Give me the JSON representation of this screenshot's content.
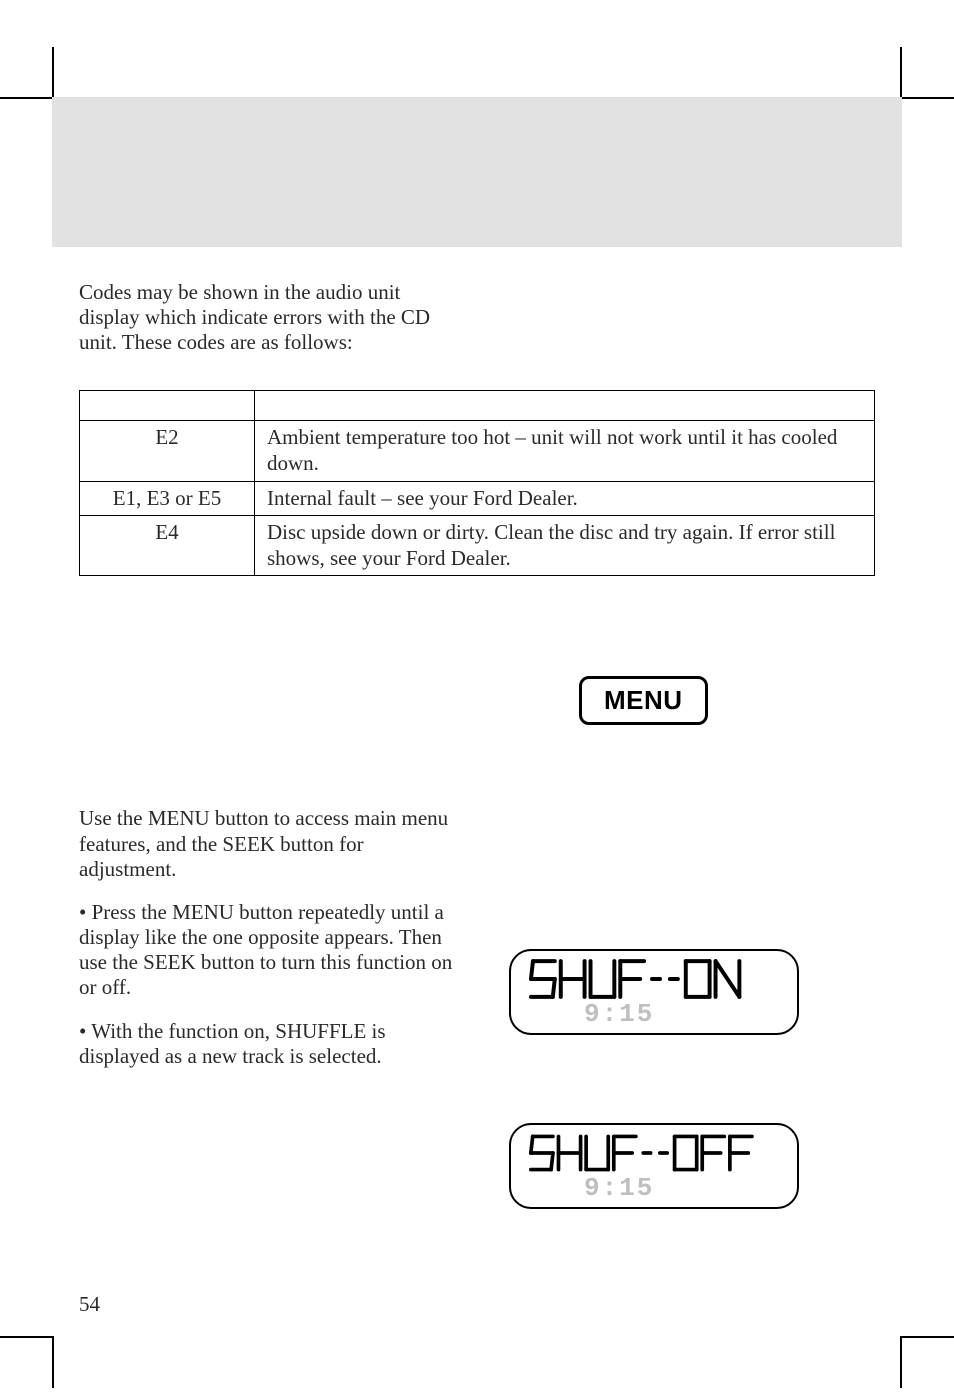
{
  "intro": "Codes may be shown in the audio unit display which indicate errors with the CD unit. These codes are as follows:",
  "table": {
    "rows": [
      {
        "code": "E2",
        "desc": "Ambient temperature too hot – unit will not work until it has cooled down."
      },
      {
        "code": "E1, E3 or E5",
        "desc": "Internal fault – see your Ford Dealer."
      },
      {
        "code": "E4",
        "desc": "Disc upside down or dirty. Clean the disc and try again. If error still shows, see your Ford Dealer."
      }
    ]
  },
  "menu_label": "MENU",
  "menu_intro": "Use the MENU button to access main menu features, and the SEEK button for adjustment.",
  "shuffle_para1": "Press the MENU button repeatedly until a display like the one opposite appears. Then use the SEEK button to turn this function on or off.",
  "shuffle_para2": "With the function on, SHUFFLE is displayed as a new track is selected.",
  "lcd1": {
    "main": "SHUF--ON",
    "sub": "9:15"
  },
  "lcd2": {
    "main": "SHUF--OFF",
    "sub": "9:15"
  },
  "page_number": "54",
  "colors": {
    "header_band": "#e2e2e2",
    "text": "#2a2a2a",
    "lcd_dim": "#bfbfbf",
    "black": "#000000"
  },
  "seg": {
    "stroke": "#000000",
    "dim": "#bfbfbf",
    "w": 24
  }
}
